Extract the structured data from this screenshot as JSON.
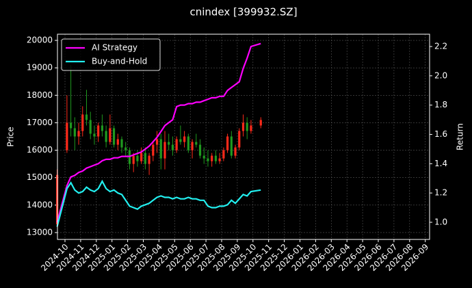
{
  "chart_data": {
    "type": "candlestick",
    "title": "cnindex [399932.SZ]",
    "ylabel": "Price",
    "y2label": "Return",
    "x": [
      "2024-09",
      "2024-10",
      "2024-10",
      "2024-10",
      "2024-10",
      "2024-11",
      "2024-11",
      "2024-11",
      "2024-11",
      "2024-12",
      "2024-12",
      "2024-12",
      "2024-12",
      "2025-01",
      "2025-01",
      "2025-01",
      "2025-01",
      "2025-02",
      "2025-02",
      "2025-02",
      "2025-02",
      "2025-03",
      "2025-03",
      "2025-03",
      "2025-03",
      "2025-04",
      "2025-04",
      "2025-04",
      "2025-04",
      "2025-05",
      "2025-05",
      "2025-05",
      "2025-05",
      "2025-06",
      "2025-06",
      "2025-06",
      "2025-06",
      "2025-07",
      "2025-07",
      "2025-07",
      "2025-07",
      "2025-08",
      "2025-08",
      "2025-08",
      "2025-08",
      "2025-09",
      "2025-09",
      "2025-09",
      "2025-09",
      "2025-10"
    ],
    "open": [
      13300,
      16000,
      17000,
      16800,
      16500,
      16700,
      17300,
      17100,
      16600,
      16500,
      16900,
      16700,
      16300,
      16800,
      16200,
      16400,
      16100,
      16000,
      15500,
      15800,
      15600,
      15900,
      15500,
      15800,
      16200,
      16400,
      15700,
      16300,
      16200,
      16000,
      16400,
      16300,
      16500,
      16000,
      16300,
      16200,
      15800,
      15700,
      15600,
      15800,
      15600,
      15700,
      16000,
      16500,
      15800,
      16100,
      16700,
      17000,
      16700,
      16900
    ],
    "high": [
      15300,
      18000,
      19100,
      17200,
      17000,
      17600,
      18200,
      17400,
      16900,
      17000,
      17300,
      16900,
      17300,
      16900,
      16600,
      16500,
      16300,
      16100,
      15900,
      16000,
      16100,
      16100,
      15900,
      16300,
      16700,
      16600,
      16700,
      16600,
      16500,
      16500,
      16900,
      16700,
      16600,
      16400,
      16600,
      16400,
      16100,
      16000,
      15900,
      16000,
      15900,
      16100,
      16600,
      16700,
      16200,
      16800,
      17300,
      17200,
      17100,
      17200
    ],
    "low": [
      13200,
      15900,
      16500,
      16000,
      16200,
      16500,
      16900,
      16400,
      16200,
      16300,
      16500,
      16100,
      16200,
      16100,
      16000,
      15900,
      15800,
      15300,
      15200,
      15400,
      15500,
      15300,
      15100,
      15600,
      15900,
      15300,
      15300,
      16000,
      15800,
      15900,
      16200,
      16100,
      15900,
      15700,
      16100,
      15700,
      15500,
      15400,
      15400,
      15500,
      15500,
      15600,
      15900,
      15700,
      15700,
      16000,
      16500,
      16400,
      16600,
      16800
    ],
    "close": [
      15100,
      17000,
      16800,
      16500,
      16700,
      17300,
      17100,
      16600,
      16500,
      16900,
      16700,
      16300,
      16800,
      16200,
      16400,
      16100,
      16000,
      15500,
      15800,
      15600,
      15900,
      15500,
      15800,
      16200,
      16400,
      15700,
      16300,
      16200,
      16000,
      16400,
      16300,
      16500,
      16000,
      16300,
      16200,
      15800,
      15700,
      15600,
      15800,
      15600,
      15700,
      16000,
      16500,
      15800,
      16100,
      16700,
      17000,
      16700,
      16900,
      17100
    ],
    "up_color": "#ff2a1a",
    "down_color": "#1f9a1f",
    "series": [
      {
        "name": "AI Strategy",
        "color": "#ff00ff",
        "axis": "y2",
        "values": [
          1.0,
          1.25,
          1.31,
          1.32,
          1.34,
          1.35,
          1.37,
          1.38,
          1.39,
          1.4,
          1.42,
          1.43,
          1.43,
          1.44,
          1.44,
          1.45,
          1.45,
          1.45,
          1.46,
          1.47,
          1.48,
          1.5,
          1.52,
          1.55,
          1.58,
          1.62,
          1.66,
          1.68,
          1.7,
          1.79,
          1.8,
          1.8,
          1.81,
          1.81,
          1.82,
          1.82,
          1.83,
          1.84,
          1.85,
          1.85,
          1.86,
          1.86,
          1.9,
          1.92,
          1.94,
          1.96,
          2.05,
          2.12,
          2.2,
          2.22
        ]
      },
      {
        "name": "Buy-and-Hold",
        "color": "#22f0f0",
        "axis": "y2",
        "values": [
          0.97,
          1.23,
          1.27,
          1.22,
          1.2,
          1.21,
          1.24,
          1.22,
          1.21,
          1.23,
          1.28,
          1.23,
          1.21,
          1.22,
          1.2,
          1.19,
          1.15,
          1.11,
          1.1,
          1.09,
          1.11,
          1.12,
          1.13,
          1.15,
          1.17,
          1.18,
          1.17,
          1.17,
          1.16,
          1.17,
          1.16,
          1.16,
          1.17,
          1.16,
          1.16,
          1.15,
          1.15,
          1.11,
          1.1,
          1.1,
          1.11,
          1.11,
          1.12,
          1.15,
          1.13,
          1.16,
          1.19,
          1.18,
          1.21,
          1.22
        ]
      }
    ],
    "ylim": [
      12750,
      20225
    ],
    "yticks": [
      13000,
      14000,
      15000,
      16000,
      17000,
      18000,
      19000,
      20000
    ],
    "y2lim": [
      0.883,
      2.284
    ],
    "y2ticks": [
      {
        "value": 1,
        "label": "1.0"
      },
      1.2,
      1.4,
      1.6,
      1.8,
      {
        "value": 2,
        "label": "2.0"
      },
      2.2
    ],
    "xticks": [
      "2024-10",
      "2024-11",
      "2024-12",
      "2025-01",
      "2025-02",
      "2025-03",
      "2025-04",
      "2025-05",
      "2025-06",
      "2025-07",
      "2025-08",
      "2025-09",
      "2025-10",
      "2025-11",
      "2025-12",
      "2026-01",
      "2026-02",
      "2026-03",
      "2026-04",
      "2026-05",
      "2026-06",
      "2026-07",
      "2026-08",
      "2026-09"
    ],
    "grid": true,
    "legend": "upper left"
  }
}
